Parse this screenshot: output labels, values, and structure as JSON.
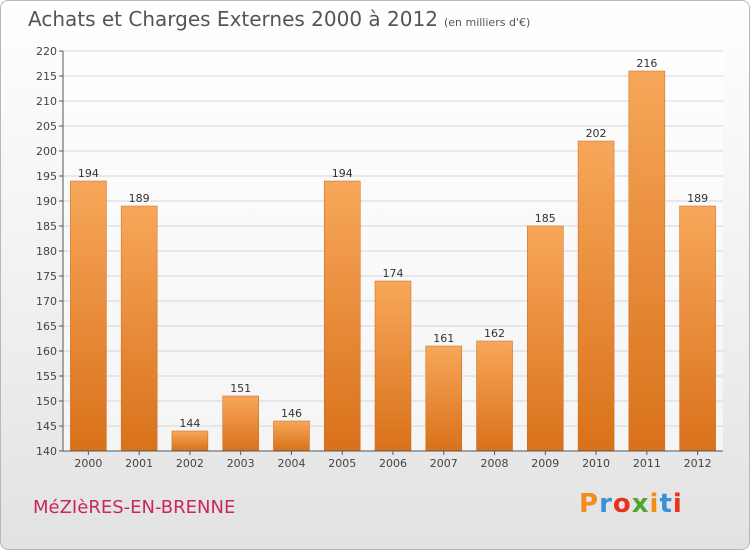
{
  "header": {
    "title": "Achats et Charges Externes 2000 à 2012",
    "subtitle": "(en milliers d'€)"
  },
  "footer": {
    "town": "MéZIèRES-EN-BRENNE",
    "brand": "Proxiti",
    "brand_letters": [
      {
        "ch": "P",
        "color": "#f28c1a"
      },
      {
        "ch": "r",
        "color": "#3a8fd8"
      },
      {
        "ch": "o",
        "color": "#e8321e"
      },
      {
        "ch": "x",
        "color": "#4da62f"
      },
      {
        "ch": "i",
        "color": "#f28c1a"
      },
      {
        "ch": "t",
        "color": "#3a8fd8"
      },
      {
        "ch": "i",
        "color": "#e8321e"
      }
    ]
  },
  "chart_data": {
    "type": "bar",
    "categories": [
      "2000",
      "2001",
      "2002",
      "2003",
      "2004",
      "2005",
      "2006",
      "2007",
      "2008",
      "2009",
      "2010",
      "2011",
      "2012"
    ],
    "values": [
      194,
      189,
      144,
      151,
      146,
      194,
      174,
      161,
      162,
      185,
      202,
      216,
      189
    ],
    "ylim": [
      140,
      220
    ],
    "yticks": [
      140,
      145,
      150,
      155,
      160,
      165,
      170,
      175,
      180,
      185,
      190,
      195,
      200,
      205,
      210,
      215,
      220
    ],
    "grid": true,
    "bar_color_top": "#f7a75a",
    "bar_color_bottom": "#d9711a"
  }
}
